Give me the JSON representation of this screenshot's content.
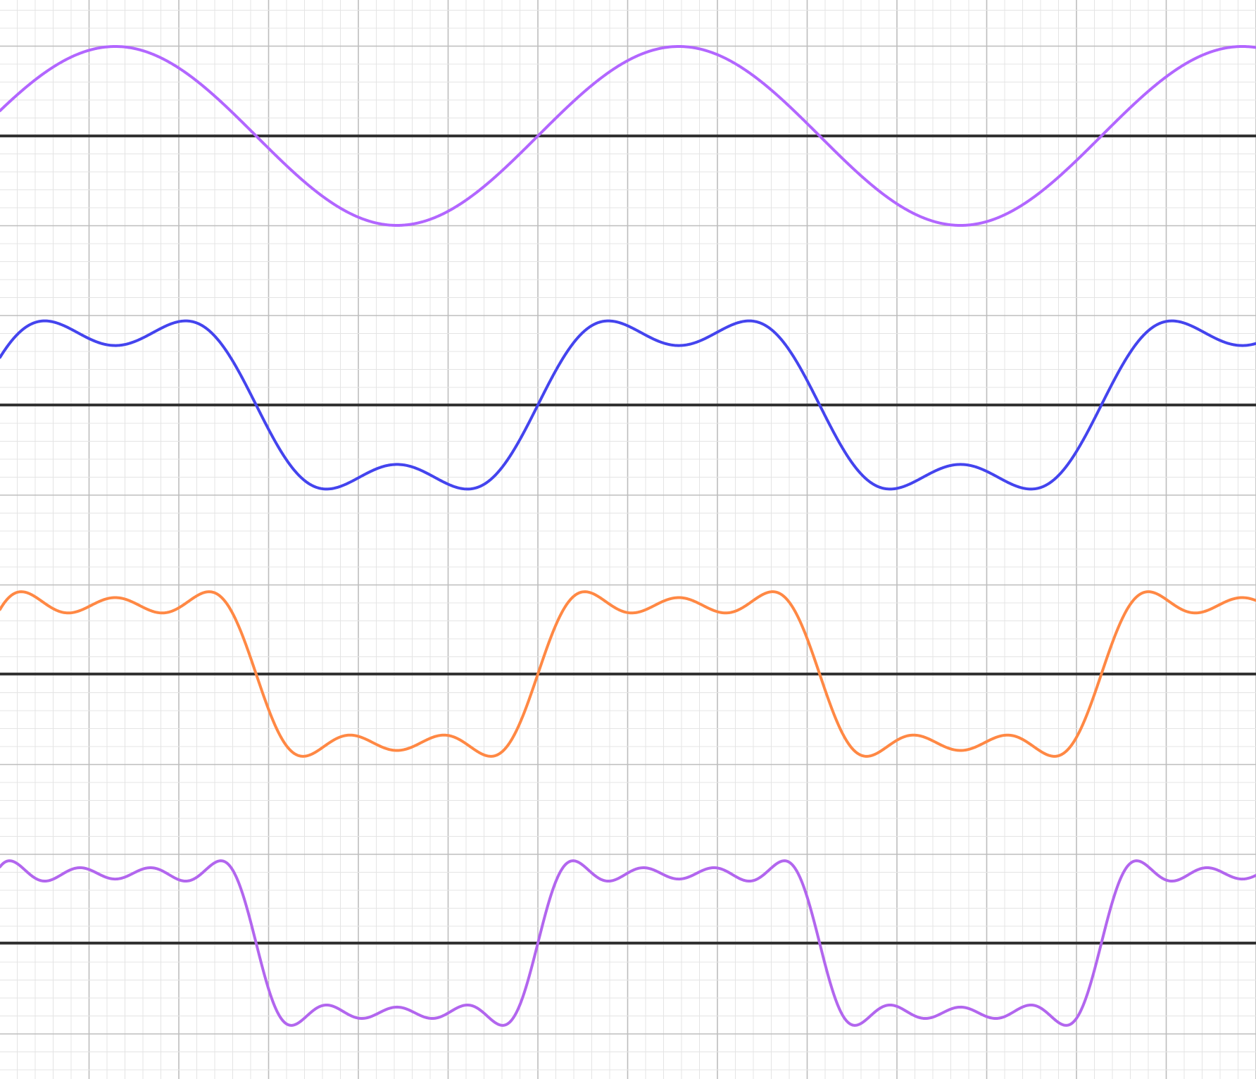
{
  "chart_data": {
    "type": "line",
    "title": "",
    "xlabel": "",
    "ylabel": "",
    "grid": true,
    "x_range": [
      -1,
      13
    ],
    "x_period": 6.28,
    "panels": [
      {
        "name": "",
        "color": "#b266ff",
        "harmonics": [
          1
        ],
        "peak": 1.0,
        "y_range": [
          -1,
          1
        ]
      },
      {
        "name": "",
        "color": "#4444ee",
        "harmonics": [
          1,
          3
        ],
        "peak": 0.94,
        "y_range": [
          -1,
          1
        ]
      },
      {
        "name": "",
        "color": "#ff8844",
        "harmonics": [
          1,
          3,
          5
        ],
        "peak": 0.92,
        "y_range": [
          -1,
          1
        ]
      },
      {
        "name": "",
        "color": "#b266ee",
        "harmonics": [
          1,
          3,
          5,
          7
        ],
        "peak": 0.92,
        "y_range": [
          -1,
          1
        ]
      }
    ],
    "colors": {
      "background": "#ffffff",
      "minor_grid": "#e4e4e4",
      "major_grid": "#bdbdbd",
      "axis": "#333333"
    }
  }
}
